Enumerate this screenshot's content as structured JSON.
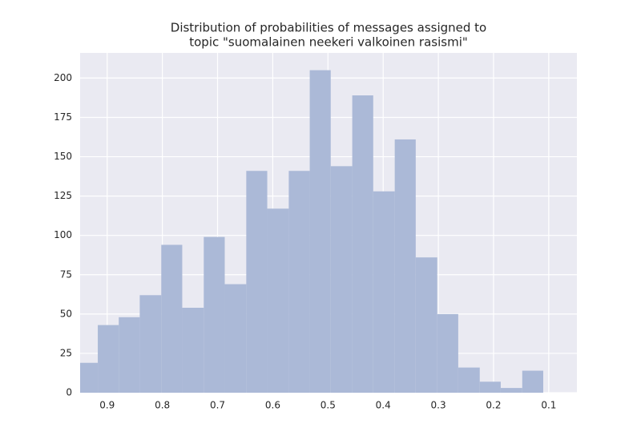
{
  "chart_data": {
    "type": "histogram",
    "title": [
      "Distribution of probabilities of messages assigned to",
      "topic \"suomalainen neekeri valkoinen rasismi\""
    ],
    "bins": [
      0.11,
      0.148,
      0.187,
      0.225,
      0.264,
      0.302,
      0.341,
      0.379,
      0.418,
      0.456,
      0.495,
      0.533,
      0.571,
      0.61,
      0.648,
      0.687,
      0.725,
      0.764,
      0.802,
      0.841,
      0.879,
      0.917,
      0.956
    ],
    "values": [
      14,
      3,
      7,
      16,
      50,
      86,
      161,
      128,
      189,
      144,
      205,
      141,
      117,
      141,
      69,
      99,
      54,
      94,
      62,
      48,
      43,
      19
    ],
    "color": "#abb9d7",
    "xlim": [
      0.949,
      0.049
    ],
    "xticks": [
      0.9,
      0.8,
      0.7,
      0.6,
      0.5,
      0.4,
      0.3,
      0.2,
      0.1
    ],
    "ylim": [
      0,
      216
    ],
    "yticks": [
      0,
      25,
      50,
      75,
      100,
      125,
      150,
      175,
      200
    ],
    "grid": true
  }
}
